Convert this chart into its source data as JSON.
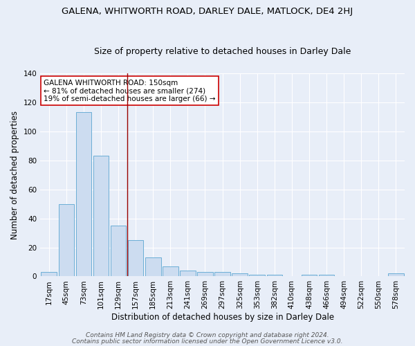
{
  "title": "GALENA, WHITWORTH ROAD, DARLEY DALE, MATLOCK, DE4 2HJ",
  "subtitle": "Size of property relative to detached houses in Darley Dale",
  "xlabel": "Distribution of detached houses by size in Darley Dale",
  "ylabel": "Number of detached properties",
  "bar_labels": [
    "17sqm",
    "45sqm",
    "73sqm",
    "101sqm",
    "129sqm",
    "157sqm",
    "185sqm",
    "213sqm",
    "241sqm",
    "269sqm",
    "297sqm",
    "325sqm",
    "353sqm",
    "382sqm",
    "410sqm",
    "438sqm",
    "466sqm",
    "494sqm",
    "522sqm",
    "550sqm",
    "578sqm"
  ],
  "bar_values": [
    3,
    50,
    113,
    83,
    35,
    25,
    13,
    7,
    4,
    3,
    3,
    2,
    1,
    1,
    0,
    1,
    1,
    0,
    0,
    0,
    2
  ],
  "bar_color": "#ccdcf0",
  "bar_edge_color": "#6baed6",
  "vline_x": 4.5,
  "vline_color": "#990000",
  "ylim": [
    0,
    140
  ],
  "yticks": [
    0,
    20,
    40,
    60,
    80,
    100,
    120,
    140
  ],
  "annotation_line1": "GALENA WHITWORTH ROAD: 150sqm",
  "annotation_line2": "← 81% of detached houses are smaller (274)",
  "annotation_line3": "19% of semi-detached houses are larger (66) →",
  "annotation_box_color": "#ffffff",
  "annotation_box_edge": "#cc0000",
  "footer1": "Contains HM Land Registry data © Crown copyright and database right 2024.",
  "footer2": "Contains public sector information licensed under the Open Government Licence v3.0.",
  "background_color": "#e8eef8",
  "grid_color": "#ffffff",
  "title_fontsize": 9.5,
  "subtitle_fontsize": 9,
  "axis_label_fontsize": 8.5,
  "tick_fontsize": 7.5,
  "annotation_fontsize": 7.5,
  "footer_fontsize": 6.5
}
